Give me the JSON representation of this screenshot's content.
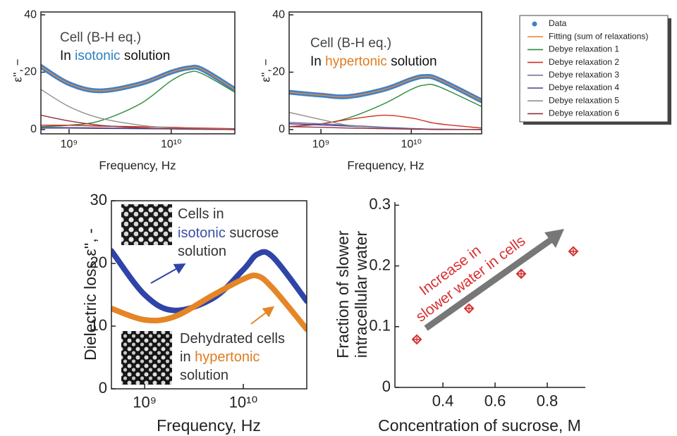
{
  "chart_data": [
    {
      "type": "line",
      "xscale": "log",
      "xlabel": "Frequency, Hz",
      "ylabel": "ε'', −",
      "xlim": [
        530000000,
        42000000000
      ],
      "ylim": [
        -1.5,
        41
      ],
      "xticks": [
        {
          "value": 1000000000,
          "label": "10⁹"
        },
        {
          "value": 10000000000,
          "label": "10¹⁰"
        }
      ],
      "yticks": [
        0,
        20,
        40
      ],
      "annotations": [
        {
          "parts": [
            {
              "text": "Cell (B-H eq.)",
              "color": "#444444"
            }
          ]
        },
        {
          "parts": [
            {
              "text": "In ",
              "color": "#111111"
            },
            {
              "text": "isotonic",
              "color": "#2a7fc0"
            },
            {
              "text": " solution",
              "color": "#111111"
            }
          ]
        }
      ],
      "x": [
        530000000,
        1000000000,
        2000000000,
        5000000000,
        10000000000,
        15000000000,
        20000000000,
        42000000000
      ],
      "series": [
        {
          "name": "Data",
          "color": "#3f80c8",
          "marker": "o",
          "values": [
            22,
            16,
            13.5,
            16,
            20,
            21.5,
            21,
            14
          ]
        },
        {
          "name": "Fitting (sum of relaxations)",
          "color": "#f08a30",
          "values": [
            22,
            16,
            13.5,
            16,
            20,
            21.5,
            21,
            14
          ]
        },
        {
          "name": "Debye relaxation 1",
          "color": "#2a8a3a",
          "values": [
            1,
            1.5,
            3,
            9,
            17,
            20,
            19.5,
            13
          ]
        },
        {
          "name": "Debye relaxation 2",
          "color": "#d03020",
          "values": [
            1.5,
            1.5,
            1.2,
            1,
            0.8,
            0.6,
            0.5,
            0.3
          ]
        },
        {
          "name": "Debye relaxation 3",
          "color": "#8070a0",
          "values": [
            0.8,
            0.7,
            0.6,
            0.4,
            0.3,
            0.2,
            0.1,
            0
          ]
        },
        {
          "name": "Debye relaxation 4",
          "color": "#404090",
          "values": [
            0.5,
            0.5,
            0.4,
            0.3,
            0.2,
            0.1,
            0.1,
            0
          ]
        },
        {
          "name": "Debye relaxation 5",
          "color": "#909090",
          "values": [
            14,
            8,
            4,
            1.5,
            0.6,
            0.4,
            0.3,
            0.1
          ]
        },
        {
          "name": "Debye relaxation 6",
          "color": "#903040",
          "values": [
            5,
            3,
            1.5,
            0.6,
            0.3,
            0.2,
            0.1,
            0
          ]
        }
      ]
    },
    {
      "type": "line",
      "xscale": "log",
      "xlabel": "Frequency, Hz",
      "ylabel": "ε'', −",
      "xlim": [
        445000000,
        60000000000
      ],
      "ylim": [
        -1.5,
        41
      ],
      "xticks": [
        {
          "value": 1000000000,
          "label": "10⁹"
        },
        {
          "value": 10000000000,
          "label": "10¹⁰"
        }
      ],
      "yticks": [
        0,
        20,
        40
      ],
      "annotations": [
        {
          "parts": [
            {
              "text": "Cell (B-H eq.)",
              "color": "#444444"
            }
          ]
        },
        {
          "parts": [
            {
              "text": "In ",
              "color": "#111111"
            },
            {
              "text": "hypertonic",
              "color": "#e07b20"
            },
            {
              "text": " solution",
              "color": "#111111"
            }
          ]
        }
      ],
      "x": [
        445000000,
        1000000000,
        2000000000,
        5000000000,
        10000000000,
        14000000000,
        20000000000,
        60000000000
      ],
      "series": [
        {
          "color": "#3f80c8",
          "marker": "o",
          "values": [
            13,
            12,
            11.5,
            14,
            17.5,
            18.5,
            17.5,
            10
          ]
        },
        {
          "color": "#f08a30",
          "values": [
            13,
            12,
            11.5,
            14,
            17.5,
            18.5,
            17.5,
            10
          ]
        },
        {
          "color": "#2a8a3a",
          "values": [
            1,
            2,
            4,
            9,
            14,
            15.5,
            15,
            8
          ]
        },
        {
          "color": "#d03020",
          "values": [
            1,
            2,
            3.5,
            5,
            4,
            3,
            2,
            0.5
          ]
        },
        {
          "color": "#8070a0",
          "values": [
            2.5,
            2,
            1.5,
            0.8,
            0.4,
            0.2,
            0.1,
            0
          ]
        },
        {
          "color": "#404090",
          "values": [
            2,
            1.6,
            1.2,
            0.6,
            0.3,
            0.2,
            0.1,
            0
          ]
        },
        {
          "color": "#909090",
          "values": [
            6,
            3.5,
            1.5,
            0.5,
            0.2,
            0.1,
            0.1,
            0
          ]
        },
        {
          "color": "#903040",
          "values": [
            1,
            0.8,
            0.5,
            0.3,
            0.1,
            0.1,
            0,
            0
          ]
        }
      ]
    },
    {
      "type": "line",
      "xscale": "log",
      "xlabel": "Frequency, Hz",
      "ylabel": "Dielectric loss ε'', -",
      "xlim": [
        460000000,
        44000000000
      ],
      "ylim": [
        0,
        30
      ],
      "xticks": [
        {
          "value": 1000000000,
          "label": "10⁹"
        },
        {
          "value": 10000000000,
          "label": "10¹⁰"
        }
      ],
      "yticks": [
        0,
        10,
        20,
        30
      ],
      "annotations": [
        {
          "parts": [
            {
              "text": "Cells in",
              "color": "#333333"
            }
          ]
        },
        {
          "parts": [
            {
              "text": "isotonic",
              "color": "#3a4fa8"
            },
            {
              "text": " sucrose",
              "color": "#333333"
            }
          ]
        },
        {
          "parts": [
            {
              "text": "solution",
              "color": "#333333"
            }
          ]
        },
        {
          "parts": [
            {
              "text": "Dehydrated cells",
              "color": "#333333"
            }
          ]
        },
        {
          "parts": [
            {
              "text": "in ",
              "color": "#333333"
            },
            {
              "text": "hypertonic",
              "color": "#e07b20"
            }
          ]
        },
        {
          "parts": [
            {
              "text": "solution",
              "color": "#333333"
            }
          ]
        }
      ],
      "x": [
        460000000,
        1000000000,
        2000000000,
        5000000000,
        10000000000,
        14000000000,
        20000000000,
        44000000000
      ],
      "series": [
        {
          "color": "#2f44a8",
          "width": 8,
          "values": [
            22,
            15,
            12.5,
            14.5,
            19,
            21.5,
            21,
            14
          ]
        },
        {
          "color": "#e58526",
          "width": 8,
          "values": [
            12.8,
            11,
            11.5,
            15,
            17.5,
            18,
            16,
            9.5
          ]
        }
      ]
    },
    {
      "type": "scatter",
      "xlabel": "Concentration of sucrose, M",
      "ylabel": [
        "Fraction of slower",
        "intracellular water"
      ],
      "xlim": [
        0.216,
        0.946
      ],
      "ylim": [
        0,
        0.305
      ],
      "xticks": [
        0.4,
        0.6,
        0.8
      ],
      "yticks": [
        0,
        0.1,
        0.2,
        0.3
      ],
      "annotations": [
        {
          "parts": [
            {
              "text": "Increase in",
              "color": "#d83030"
            }
          ]
        },
        {
          "parts": [
            {
              "text": "slower water in cells",
              "color": "#d83030"
            }
          ]
        }
      ],
      "color": "#d03030",
      "x": [
        0.3,
        0.5,
        0.7,
        0.9
      ],
      "values": [
        0.079,
        0.13,
        0.187,
        0.224
      ],
      "errors": [
        0.004,
        0.004,
        0.007,
        0.004
      ]
    }
  ]
}
